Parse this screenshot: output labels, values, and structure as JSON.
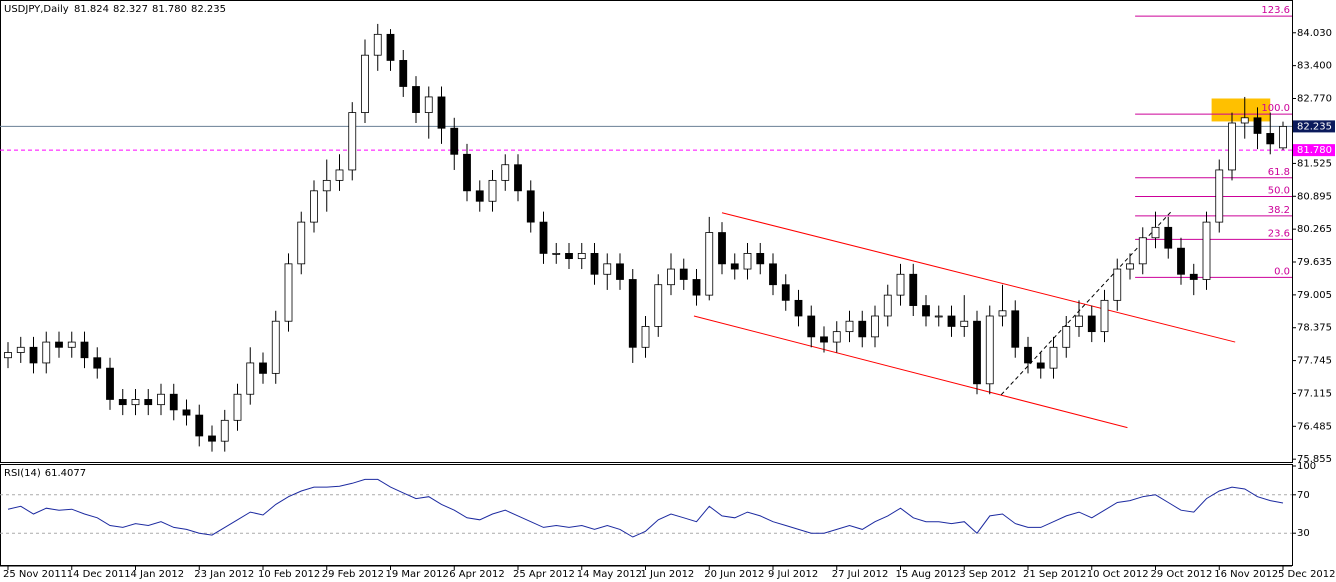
{
  "chart_data": [
    {
      "type": "candlestick",
      "title": "USDJPY,Daily",
      "ohlc_label": [
        81.824,
        82.327,
        {
          "value": 81.78,
          "label": "81.780"
        },
        82.235
      ],
      "categories": [
        "25 Nov 2011",
        null,
        null,
        null,
        null,
        "14 Dec 2011",
        null,
        null,
        null,
        null,
        "4 Jan 2012",
        null,
        null,
        null,
        null,
        "23 Jan 2012",
        null,
        null,
        null,
        null,
        "10 Feb 2012",
        null,
        null,
        null,
        null,
        "29 Feb 2012",
        null,
        null,
        null,
        null,
        "19 Mar 2012",
        null,
        null,
        null,
        null,
        "6 Apr 2012",
        null,
        null,
        null,
        null,
        "25 Apr 2012",
        null,
        null,
        null,
        null,
        "14 May 2012",
        null,
        null,
        null,
        null,
        "1 Jun 2012",
        null,
        null,
        null,
        null,
        "20 Jun 2012",
        null,
        null,
        null,
        null,
        "9 Jul 2012",
        null,
        null,
        null,
        null,
        "27 Jul 2012",
        null,
        null,
        null,
        null,
        "15 Aug 2012",
        null,
        null,
        null,
        null,
        "3 Sep 2012",
        null,
        null,
        null,
        null,
        "21 Sep 2012",
        null,
        null,
        null,
        null,
        "10 Oct 2012",
        null,
        null,
        null,
        null,
        "29 Oct 2012",
        null,
        null,
        null,
        null,
        "16 Nov 2012",
        null,
        null,
        null,
        null,
        "5 Dec 2012"
      ],
      "open": [
        77.8,
        77.9,
        78.0,
        77.7,
        78.1,
        78.0,
        78.1,
        77.8,
        77.6,
        77.0,
        76.9,
        77.0,
        76.9,
        77.1,
        76.8,
        76.7,
        76.3,
        76.2,
        76.6,
        77.1,
        77.7,
        77.5,
        78.5,
        79.6,
        80.4,
        81.0,
        81.2,
        81.4,
        82.5,
        83.6,
        84.0,
        83.5,
        83.0,
        82.5,
        82.8,
        82.2,
        81.7,
        81.0,
        80.8,
        81.2,
        81.5,
        81.0,
        80.4,
        79.8,
        79.8,
        79.7,
        79.8,
        79.4,
        79.6,
        79.3,
        78.0,
        78.4,
        79.2,
        79.5,
        79.3,
        79.0,
        80.2,
        79.6,
        79.5,
        79.8,
        79.6,
        79.2,
        78.9,
        78.6,
        78.2,
        78.1,
        78.3,
        78.5,
        78.2,
        78.6,
        79.0,
        79.4,
        78.8,
        78.6,
        78.6,
        78.4,
        78.5,
        77.3,
        78.6,
        78.7,
        78.0,
        77.7,
        77.6,
        78.0,
        78.4,
        78.6,
        78.3,
        78.9,
        79.5,
        79.6,
        80.1,
        80.3,
        79.9,
        79.4,
        79.3,
        80.4,
        81.4,
        82.3,
        82.4,
        82.1,
        81.824
      ],
      "high": [
        78.1,
        78.2,
        78.2,
        78.3,
        78.3,
        78.3,
        78.3,
        78.0,
        77.8,
        77.2,
        77.2,
        77.2,
        77.3,
        77.3,
        77.0,
        76.9,
        76.5,
        76.8,
        77.3,
        78.0,
        77.9,
        78.7,
        79.8,
        80.6,
        81.2,
        81.6,
        81.7,
        82.7,
        83.9,
        84.2,
        84.1,
        83.7,
        83.2,
        83.0,
        83.0,
        82.4,
        81.9,
        81.2,
        81.4,
        81.7,
        81.7,
        81.2,
        80.6,
        80.0,
        80.0,
        80.0,
        80.0,
        79.8,
        79.8,
        79.5,
        78.6,
        79.4,
        79.8,
        79.7,
        79.5,
        80.5,
        80.4,
        79.8,
        80.0,
        80.0,
        79.8,
        79.4,
        79.1,
        78.8,
        78.4,
        78.5,
        78.7,
        78.7,
        78.8,
        79.2,
        79.6,
        79.6,
        79.0,
        78.8,
        78.8,
        79.0,
        78.7,
        78.8,
        79.2,
        78.9,
        78.2,
        77.9,
        78.2,
        78.6,
        78.9,
        78.8,
        79.1,
        79.7,
        79.8,
        80.3,
        80.6,
        80.5,
        80.1,
        79.6,
        80.6,
        81.6,
        82.5,
        82.8,
        82.6,
        82.5,
        82.327
      ],
      "low": [
        77.6,
        77.7,
        77.5,
        77.5,
        77.8,
        77.8,
        77.6,
        77.4,
        76.8,
        76.7,
        76.7,
        76.7,
        76.7,
        76.6,
        76.5,
        76.1,
        76.0,
        76.0,
        76.4,
        76.9,
        77.3,
        77.3,
        78.3,
        79.4,
        80.2,
        80.6,
        81.0,
        81.2,
        82.3,
        83.3,
        83.3,
        82.8,
        82.3,
        82.0,
        81.9,
        81.4,
        80.8,
        80.6,
        80.6,
        81.0,
        80.8,
        80.2,
        79.6,
        79.6,
        79.5,
        79.5,
        79.2,
        79.1,
        79.1,
        77.7,
        77.8,
        78.2,
        79.0,
        79.1,
        78.8,
        78.9,
        79.4,
        79.3,
        79.3,
        79.4,
        79.0,
        78.7,
        78.4,
        78.0,
        77.9,
        77.9,
        78.1,
        78.0,
        78.0,
        78.4,
        78.8,
        78.6,
        78.4,
        78.4,
        78.2,
        78.2,
        77.1,
        77.1,
        78.4,
        77.8,
        77.5,
        77.4,
        77.4,
        77.8,
        78.2,
        78.1,
        78.1,
        78.7,
        79.3,
        79.4,
        79.9,
        79.7,
        79.2,
        79.0,
        79.1,
        80.2,
        81.2,
        82.0,
        81.8,
        81.7,
        81.78
      ],
      "close": [
        77.9,
        78.0,
        77.7,
        78.1,
        78.0,
        78.1,
        77.8,
        77.6,
        77.0,
        76.9,
        77.0,
        76.9,
        77.1,
        76.8,
        76.7,
        76.3,
        76.2,
        76.6,
        77.1,
        77.7,
        77.5,
        78.5,
        79.6,
        80.4,
        81.0,
        81.2,
        81.4,
        82.5,
        83.6,
        84.0,
        83.5,
        83.0,
        82.5,
        82.8,
        82.2,
        81.7,
        81.0,
        80.8,
        81.2,
        81.5,
        81.0,
        80.4,
        79.8,
        79.8,
        79.7,
        79.8,
        79.4,
        79.6,
        79.3,
        78.0,
        78.4,
        79.2,
        79.5,
        79.3,
        79.0,
        80.2,
        79.6,
        79.5,
        79.8,
        79.6,
        79.2,
        78.9,
        78.6,
        78.2,
        78.1,
        78.3,
        78.5,
        78.2,
        78.6,
        79.0,
        79.4,
        78.8,
        78.6,
        78.6,
        78.4,
        78.5,
        77.3,
        78.6,
        78.7,
        78.0,
        77.7,
        77.6,
        78.0,
        78.4,
        78.6,
        78.3,
        78.9,
        79.5,
        79.6,
        80.1,
        80.3,
        79.9,
        79.4,
        79.3,
        80.4,
        81.4,
        82.3,
        82.4,
        82.1,
        81.9,
        82.235
      ],
      "up_color": "#ffffff",
      "down_color": "#000000",
      "wick_color": "#000000",
      "ylim": [
        75.82,
        84.62
      ],
      "yticks": [
        {
          "value": 84.03,
          "label": "84.030"
        },
        {
          "value": 83.4,
          "label": "83.400"
        },
        {
          "value": 82.77,
          "label": "82.770"
        },
        81.525,
        80.895,
        {
          "value": 80.265,
          "label": "80.265"
        },
        79.635,
        79.005,
        78.375,
        77.745,
        77.115,
        76.485,
        75.855
      ],
      "price_lines": [
        {
          "level": 82.235,
          "color": "#6a7f94",
          "label_bg": "#0b1b5c",
          "dashed": false
        },
        {
          "level": {
            "value": 81.78,
            "label": "81.780"
          },
          "color": "#ff00ff",
          "label_bg": "#ff00ff",
          "dashed": true
        }
      ],
      "trendlines": [
        {
          "x": [
            53.8,
            87.8
          ],
          "y": [
            78.6,
            76.46
          ],
          "color": "#ff0000",
          "dashed": false
        },
        {
          "x": [
            56.0,
            96.25
          ],
          "y": [
            80.58,
            78.1
          ],
          "color": "#ff0000",
          "dashed": false
        },
        {
          "x": [
            77.9,
            91.3
          ],
          "y": [
            77.09,
            80.62
          ],
          "color": "#000000",
          "dashed": true
        }
      ],
      "zone": {
        "x": [
          94.4,
          99.0
        ],
        "y": [
          82.33,
          82.77
        ],
        "color": "#ffc000"
      },
      "fib": {
        "from": 88.4,
        "color": "#cc0099",
        "levels": [
          {
            "label": "123.6",
            "price": 84.35
          },
          {
            "label": "100.0",
            "price": 82.47
          },
          {
            "label": "61.8",
            "price": 81.25
          },
          {
            "label": "50.0",
            "price": 80.89
          },
          {
            "label": "38.2",
            "price": 80.52
          },
          {
            "label": "23.6",
            "price": 80.07
          },
          {
            "label": "0.0",
            "price": 79.34
          }
        ]
      }
    },
    {
      "type": "line",
      "title": "RSI(14)",
      "color": "#1c2aa0",
      "values": [
        55,
        58,
        50,
        56,
        54,
        55,
        50,
        46,
        38,
        36,
        40,
        38,
        42,
        36,
        34,
        30,
        28,
        36,
        44,
        52,
        49,
        60,
        68,
        74,
        78,
        78,
        79,
        82,
        86,
        86,
        78,
        72,
        66,
        68,
        60,
        54,
        46,
        44,
        50,
        54,
        48,
        42,
        36,
        38,
        36,
        38,
        34,
        38,
        34,
        26,
        32,
        44,
        50,
        46,
        42,
        58,
        48,
        46,
        52,
        48,
        42,
        38,
        34,
        30,
        30,
        34,
        38,
        34,
        42,
        48,
        56,
        46,
        42,
        42,
        40,
        42,
        30,
        48,
        50,
        40,
        36,
        36,
        42,
        48,
        52,
        46,
        54,
        62,
        64,
        68,
        70,
        62,
        54,
        52,
        66,
        74,
        78,
        76,
        68,
        64,
        61.4077
      ],
      "ylim": [
        0,
        100
      ],
      "yticks": [
        100,
        70,
        30
      ],
      "levels": [
        70,
        30
      ]
    }
  ]
}
